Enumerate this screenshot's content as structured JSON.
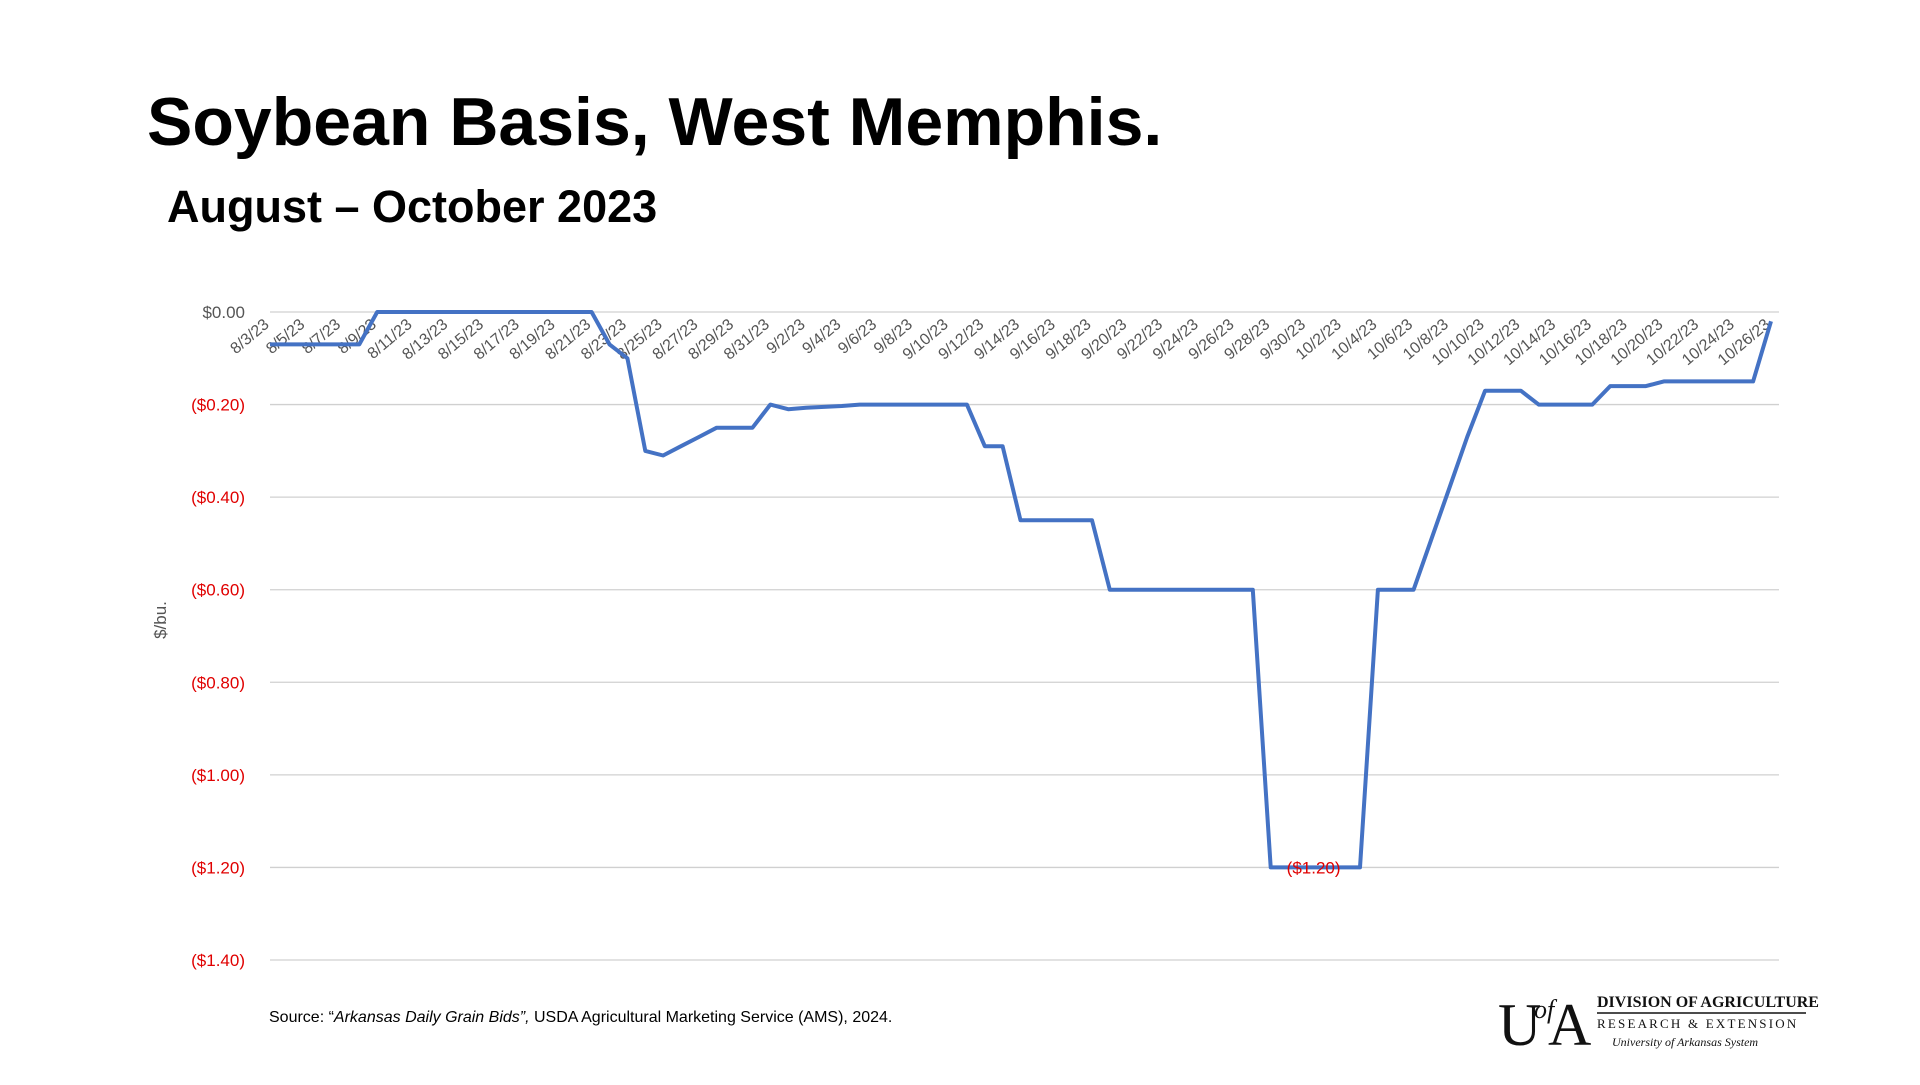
{
  "chart_data": {
    "type": "line",
    "title": "Soybean Basis, West Memphis.",
    "subtitle": "August – October 2023",
    "y_label": "$/bu.",
    "categories": [
      "8/3/23",
      null,
      "8/5/23",
      null,
      "8/7/23",
      null,
      "8/9/23",
      null,
      "8/11/23",
      null,
      "8/13/23",
      null,
      "8/15/23",
      null,
      "8/17/23",
      null,
      "8/19/23",
      null,
      "8/21/23",
      null,
      "8/23/23",
      null,
      "8/25/23",
      null,
      "8/27/23",
      null,
      "8/29/23",
      null,
      "8/31/23",
      null,
      "9/2/23",
      null,
      "9/4/23",
      null,
      "9/6/23",
      null,
      "9/8/23",
      null,
      "9/10/23",
      null,
      "9/12/23",
      null,
      "9/14/23",
      null,
      "9/16/23",
      null,
      "9/18/23",
      null,
      "9/20/23",
      null,
      "9/22/23",
      null,
      "9/24/23",
      null,
      "9/26/23",
      null,
      "9/28/23",
      null,
      "9/30/23",
      null,
      "10/2/23",
      null,
      "10/4/23",
      null,
      "10/6/23",
      null,
      "10/8/23",
      null,
      "10/10/23",
      null,
      "10/12/23",
      null,
      "10/14/23",
      null,
      "10/16/23",
      null,
      "10/18/23",
      null,
      "10/20/23",
      null,
      "10/22/23",
      null,
      "10/24/23",
      null,
      "10/26/23"
    ],
    "series": [
      {
        "name": "Soybean basis",
        "color": "#4472c4",
        "values": [
          -0.07,
          -0.07,
          -0.07,
          -0.07,
          -0.07,
          -0.07,
          0,
          0,
          0,
          0,
          0,
          0,
          0,
          0,
          0,
          0,
          0,
          0,
          0,
          -0.07,
          -0.1,
          -0.3,
          -0.31,
          -0.29,
          -0.27,
          -0.25,
          -0.25,
          -0.25,
          -0.2,
          -0.21,
          -0.207,
          -0.205,
          -0.203,
          -0.2,
          -0.2,
          -0.2,
          -0.2,
          -0.2,
          -0.2,
          -0.2,
          -0.29,
          -0.29,
          -0.45,
          -0.45,
          -0.45,
          -0.45,
          -0.45,
          -0.6,
          -0.6,
          -0.6,
          -0.6,
          -0.6,
          -0.6,
          -0.6,
          -0.6,
          -0.6,
          -1.2,
          -1.2,
          -1.2,
          -1.2,
          -1.2,
          -1.2,
          -0.6,
          -0.6,
          -0.6,
          -0.49,
          -0.38,
          -0.27,
          -0.17,
          -0.17,
          -0.17,
          -0.2,
          -0.2,
          -0.2,
          -0.2,
          -0.16,
          -0.16,
          -0.16,
          -0.15,
          -0.15,
          -0.15,
          -0.15,
          -0.15,
          -0.15,
          -0.02
        ]
      }
    ],
    "annotation": "($1.20)",
    "ylim": [
      -1.4,
      0
    ],
    "yticks": [
      {
        "value": 0,
        "label": "$0.00"
      },
      {
        "value": -0.2,
        "label": "($0.20)"
      },
      {
        "value": -0.4,
        "label": "($0.40)"
      },
      {
        "value": -0.6,
        "label": "($0.60)"
      },
      {
        "value": -0.8,
        "label": "($0.80)"
      },
      {
        "value": -1.0,
        "label": "($1.00)"
      },
      {
        "value": -1.2,
        "label": "($1.20)"
      },
      {
        "value": -1.4,
        "label": "($1.40)"
      }
    ],
    "negative_color": "#e00000",
    "grid": true
  },
  "footer": {
    "source": {
      "prefix": "Source: “",
      "title": "Arkansas Daily Grain Bids”,",
      "rest": " USDA Agricultural Marketing Service (AMS), 2024."
    },
    "logo": {
      "u": "U",
      "of": "of",
      "a": "A",
      "line1": "DIVISION OF AGRICULTURE",
      "line2": "RESEARCH & EXTENSION",
      "line3": "University of Arkansas System"
    }
  }
}
